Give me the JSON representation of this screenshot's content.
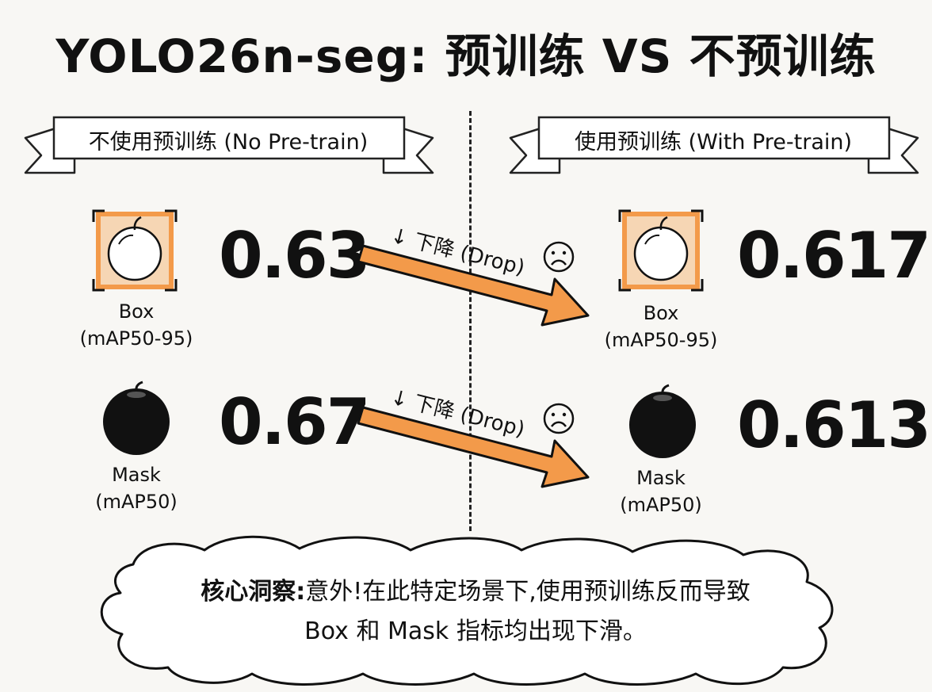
{
  "title": "YOLO26n-seg: 预训练 VS 不预训练",
  "left_panel": {
    "banner": "不使用预训练 (No Pre-train)",
    "box": {
      "value": "0.63",
      "label_line1": "Box",
      "label_line2": "(mAP50-95)"
    },
    "mask": {
      "value": "0.67",
      "label_line1": "Mask",
      "label_line2": "(mAP50)"
    }
  },
  "right_panel": {
    "banner": "使用预训练 (With Pre-train)",
    "box": {
      "value": "0.617",
      "label_line1": "Box",
      "label_line2": "(mAP50-95)"
    },
    "mask": {
      "value": "0.613",
      "label_line1": "Mask",
      "label_line2": "(mAP50)"
    }
  },
  "arrows": [
    {
      "label": "↓ 下降 (Drop)",
      "icon": "sad-face-icon",
      "color": "#f39a4a"
    },
    {
      "label": "↓ 下降 (Drop)",
      "icon": "sad-face-icon",
      "color": "#f39a4a"
    }
  ],
  "insight": {
    "lead": "核心洞察:",
    "text_line1": "意外!在此特定场景下,使用预训练反而导致",
    "text_line2": "Box 和 Mask 指标均出现下滑。"
  },
  "colors": {
    "accent": "#f39a4a",
    "box_fill": "#f6d6b4",
    "ink": "#111111",
    "background": "#f8f7f4"
  }
}
